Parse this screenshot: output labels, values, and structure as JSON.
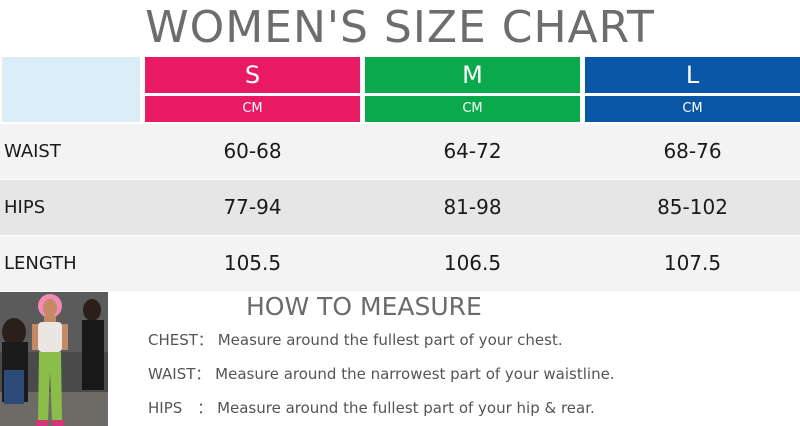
{
  "title": "WOMEN'S SIZE CHART",
  "sizes": [
    {
      "label": "S",
      "unit": "CM",
      "color": "#e81a63"
    },
    {
      "label": "M",
      "unit": "CM",
      "color": "#0aa94c"
    },
    {
      "label": "L",
      "unit": "CM",
      "color": "#0a56a6"
    }
  ],
  "rows": [
    {
      "label": "WAIST",
      "values": [
        "60-68",
        "64-72",
        "68-76"
      ]
    },
    {
      "label": "HIPS",
      "values": [
        "77-94",
        "81-98",
        "85-102"
      ]
    },
    {
      "label": "LENGTH",
      "values": [
        "105.5",
        "106.5",
        "107.5"
      ]
    }
  ],
  "how_to_measure": {
    "title": "HOW TO MEASURE",
    "items": [
      {
        "key": "CHEST：",
        "text": "Measure around the fullest part of your chest."
      },
      {
        "key": "WAIST：",
        "text": "Measure around the narrowest part of your waistline."
      },
      {
        "key": "HIPS　：",
        "text": "Measure around the fullest part of your hip & rear."
      }
    ]
  },
  "colors": {
    "header_blank": "#dbeef7",
    "row_light": "#f3f3f3",
    "row_dark": "#e6e6e6"
  }
}
